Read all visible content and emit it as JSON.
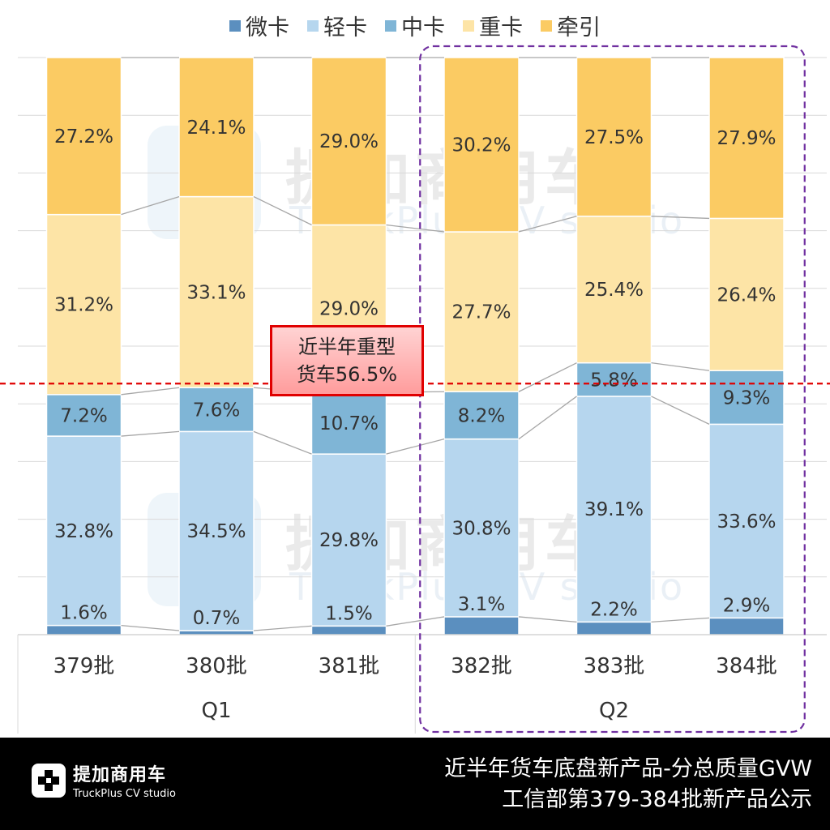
{
  "chart_data": {
    "type": "bar",
    "stacked": true,
    "percent_stacked": true,
    "categories": [
      "379批",
      "380批",
      "381批",
      "382批",
      "383批",
      "384批"
    ],
    "groups": [
      {
        "label": "Q1",
        "categories": [
          "379批",
          "380批",
          "381批"
        ]
      },
      {
        "label": "Q2",
        "categories": [
          "382批",
          "383批",
          "384批"
        ]
      }
    ],
    "series": [
      {
        "name": "微卡",
        "color": "#5b8fbf",
        "values": [
          1.6,
          0.7,
          1.5,
          3.1,
          2.2,
          2.9
        ],
        "labels": [
          "1.6%",
          "0.7%",
          "1.5%",
          "3.1%",
          "2.2%",
          "2.9%"
        ]
      },
      {
        "name": "轻卡",
        "color": "#b6d6ee",
        "values": [
          32.8,
          34.5,
          29.8,
          30.8,
          39.1,
          33.6
        ],
        "labels": [
          "32.8%",
          "34.5%",
          "29.8%",
          "30.8%",
          "39.1%",
          "33.6%"
        ]
      },
      {
        "name": "中卡",
        "color": "#7fb5d6",
        "values": [
          7.2,
          7.6,
          10.7,
          8.2,
          5.8,
          9.3
        ],
        "labels": [
          "7.2%",
          "7.6%",
          "10.7%",
          "8.2%",
          "5.8%",
          "9.3%"
        ]
      },
      {
        "name": "重卡",
        "color": "#fde4a6",
        "values": [
          31.2,
          33.1,
          29.0,
          27.7,
          25.4,
          26.4
        ],
        "labels": [
          "31.2%",
          "33.1%",
          "29.0%",
          "27.7%",
          "25.4%",
          "26.4%"
        ]
      },
      {
        "name": "牵引",
        "color": "#fbcb63",
        "values": [
          27.2,
          24.1,
          29.0,
          30.2,
          27.5,
          27.9
        ],
        "labels": [
          "27.2%",
          "24.1%",
          "29.0%",
          "30.2%",
          "27.5%",
          "27.9%"
        ]
      }
    ],
    "ylim": [
      0,
      100
    ],
    "reference_line": {
      "value": 43.5,
      "color": "#e00000",
      "style": "dashed"
    },
    "highlight_group": "Q2",
    "legend_position": "top"
  },
  "callout": {
    "line1": "近半年重型",
    "line2": "货车56.5%"
  },
  "watermark": {
    "cn": "提加商用车",
    "en": "TruckPlus CV studio"
  },
  "footer": {
    "brand_cn": "提加商用车",
    "brand_en": "TruckPlus CV studio",
    "title_line1": "近半年货车底盘新产品-分总质量GVW",
    "title_line2": "工信部第379-384批新产品公示"
  }
}
